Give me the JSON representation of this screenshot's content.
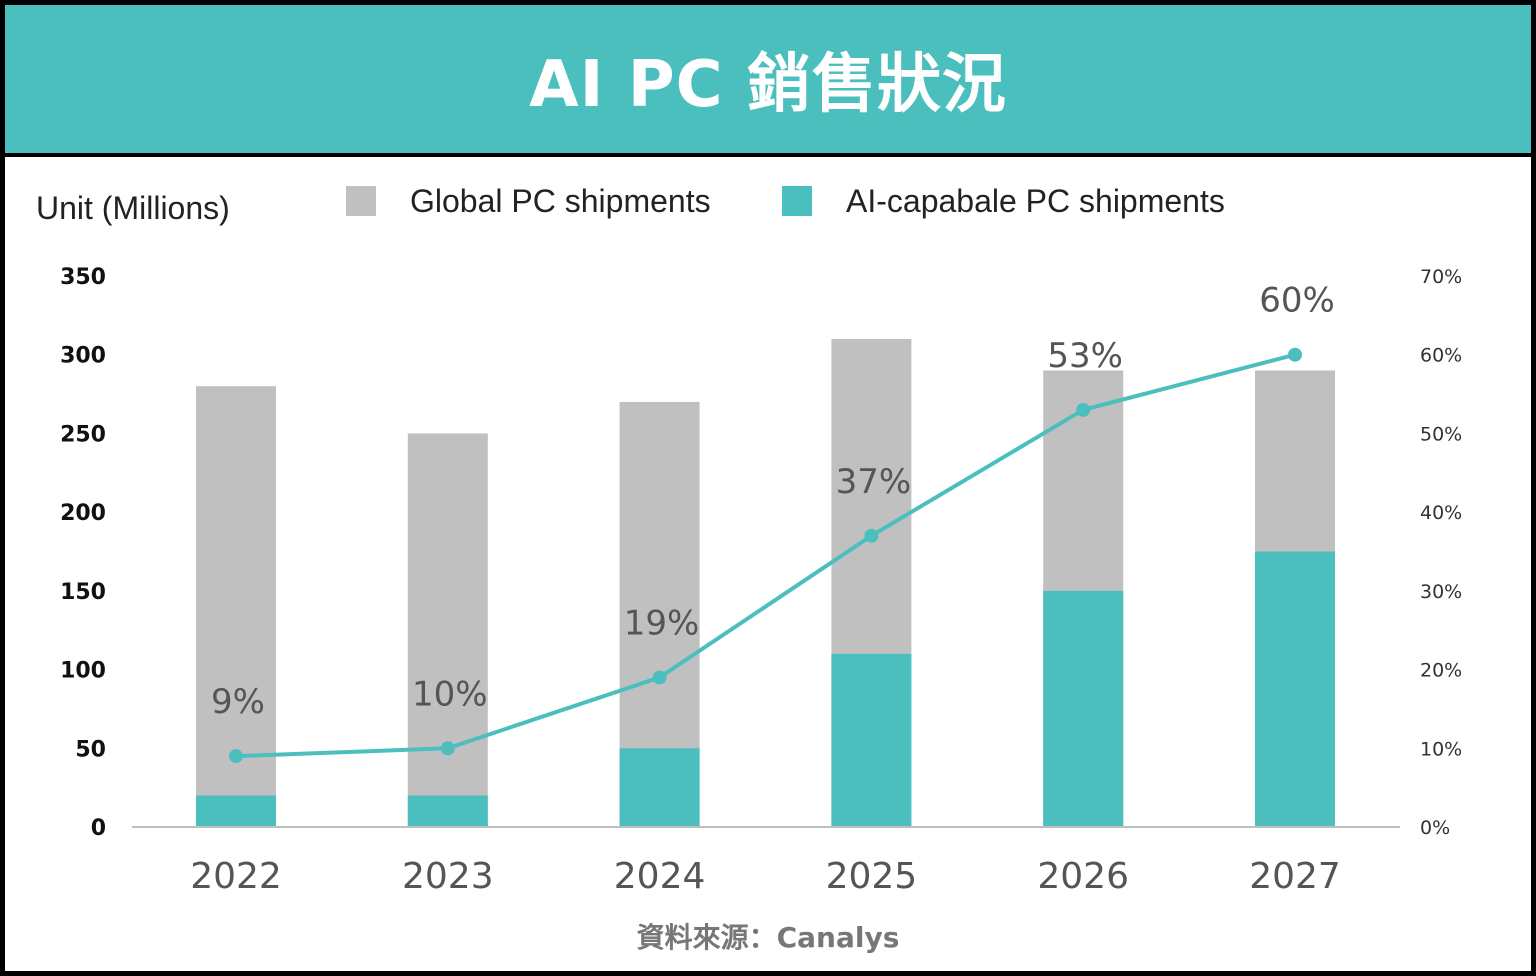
{
  "header": {
    "title": "AI PC 銷售狀況"
  },
  "source": "資料來源：Canalys",
  "colors": {
    "teal": "#4bbfbd",
    "gray": "#c0c0c0",
    "axis": "#bfbfbf"
  },
  "chart_data": {
    "type": "bar",
    "ylabel": "Unit (Millions)",
    "categories": [
      "2022",
      "2023",
      "2024",
      "2025",
      "2026",
      "2027"
    ],
    "left_axis": {
      "ylim": [
        0,
        350
      ],
      "ticks": [
        "0",
        "50",
        "100",
        "150",
        "200",
        "250",
        "300",
        "350"
      ]
    },
    "right_axis": {
      "ylim": [
        0,
        70
      ],
      "ticks": [
        "0%",
        "10%",
        "20%",
        "30%",
        "40%",
        "50%",
        "60%",
        "70%"
      ]
    },
    "series": [
      {
        "name": "Global PC shipments",
        "color": "#c0c0c0",
        "type": "bar",
        "values": [
          280,
          250,
          270,
          310,
          290,
          290
        ]
      },
      {
        "name": "AI-capabale PC shipments",
        "color": "#4bbfbd",
        "type": "bar",
        "values": [
          20,
          20,
          50,
          110,
          150,
          175
        ]
      },
      {
        "type": "line",
        "axis": "right",
        "color": "#4bbfbd",
        "values": [
          9,
          10,
          19,
          37,
          53,
          60
        ],
        "labels": [
          "9%",
          "10%",
          "19%",
          "37%",
          "53%",
          "60%"
        ]
      }
    ],
    "grid": false,
    "legend_position": "top"
  }
}
